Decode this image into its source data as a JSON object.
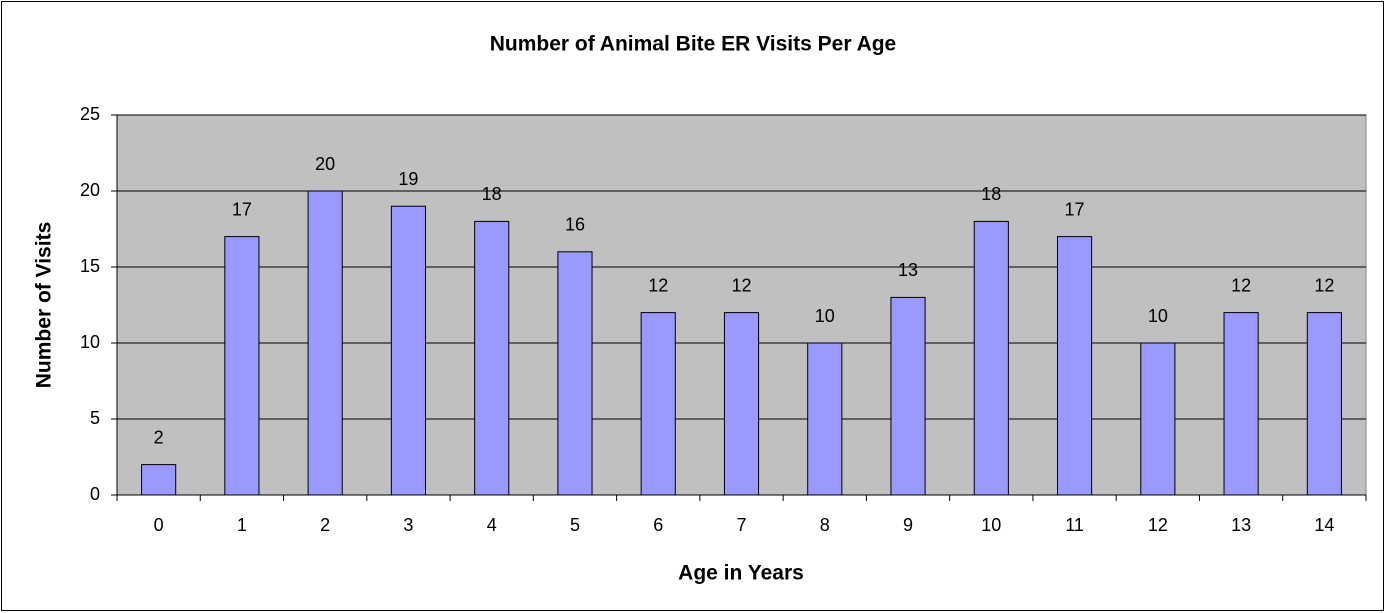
{
  "chart_data": {
    "type": "bar",
    "title": "Number of Animal Bite ER Visits Per Age",
    "x_label": "Age in Years",
    "y_label": "Number of Visits",
    "categories": [
      "0",
      "1",
      "2",
      "3",
      "4",
      "5",
      "6",
      "7",
      "8",
      "9",
      "10",
      "11",
      "12",
      "13",
      "14"
    ],
    "values": [
      2,
      17,
      20,
      19,
      18,
      16,
      12,
      12,
      10,
      13,
      18,
      17,
      10,
      12,
      12
    ],
    "color": "#9999ff",
    "ylim": [
      0,
      25
    ],
    "yticks": [
      0,
      5,
      10,
      15,
      20,
      25
    ],
    "grid": true
  }
}
